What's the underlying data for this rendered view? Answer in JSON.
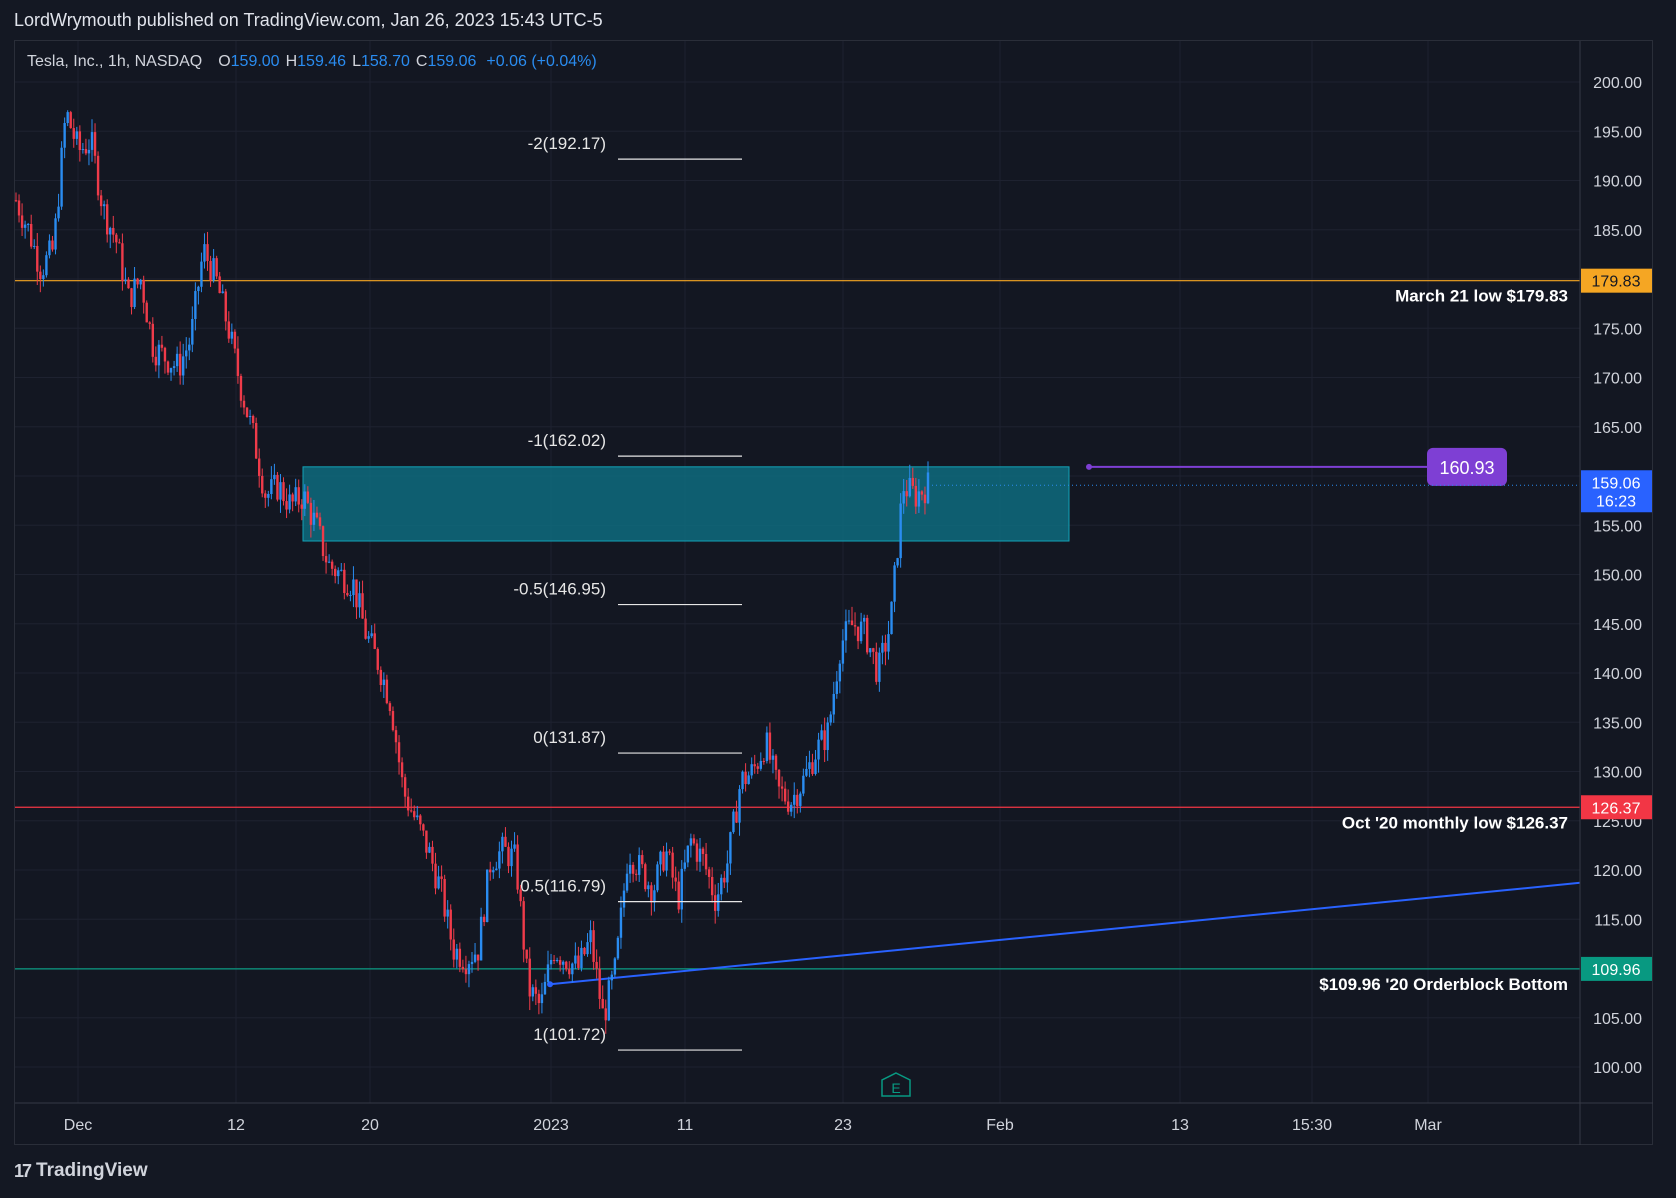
{
  "header": {
    "published": "LordWrymouth published on TradingView.com, Jan 26, 2023 15:43 UTC-5"
  },
  "legend": {
    "symbol": "Tesla, Inc., 1h, NASDAQ",
    "o_label": "O",
    "o_value": "159.00",
    "h_label": "H",
    "h_value": "159.46",
    "l_label": "L",
    "l_value": "158.70",
    "c_label": "C",
    "c_value": "159.06",
    "change": "+0.06 (+0.04%)"
  },
  "footer": {
    "brand": "TradingView",
    "logo_icon": "tradingview-logo-icon"
  },
  "colors": {
    "background": "#131722",
    "grid": "#1e2230",
    "up": "#2a8cf0",
    "down": "#ef3b4a",
    "orange": "#f5a623",
    "red": "#f23645",
    "teal": "#089981",
    "blue_line": "#2962ff",
    "zone": "#0e6b7e",
    "purple": "#7e3fd4"
  },
  "chart_data": {
    "type": "candlestick",
    "symbol": "Tesla, Inc., 1h, NASDAQ",
    "y_axis_ticks": [
      100,
      105,
      110,
      115,
      120,
      125,
      130,
      135,
      140,
      145,
      150,
      155,
      160,
      165,
      170,
      175,
      180,
      185,
      190,
      195,
      200
    ],
    "y_tick_labels": [
      "100.00",
      "105.00",
      "110.00",
      "115.00",
      "120.00",
      "125.00",
      "130.00",
      "135.00",
      "140.00",
      "145.00",
      "150.00",
      "155.00",
      "160.00",
      "165.00",
      "170.00",
      "175.00",
      "180.00",
      "185.00",
      "190.00",
      "195.00",
      "200.00"
    ],
    "ylim": [
      97,
      204
    ],
    "x_tick_labels": [
      "Dec",
      "12",
      "20",
      "2023",
      "11",
      "23",
      "Feb",
      "13",
      "15:30",
      "Mar"
    ],
    "price_path": [
      [
        0,
        188
      ],
      [
        2,
        185
      ],
      [
        4,
        181
      ],
      [
        6,
        183
      ],
      [
        8,
        197
      ],
      [
        10,
        193
      ],
      [
        12,
        194
      ],
      [
        14,
        187
      ],
      [
        16,
        184
      ],
      [
        18,
        178
      ],
      [
        20,
        180
      ],
      [
        22,
        173
      ],
      [
        24,
        172
      ],
      [
        26,
        171
      ],
      [
        28,
        174
      ],
      [
        30,
        183
      ],
      [
        32,
        180
      ],
      [
        34,
        175
      ],
      [
        36,
        169
      ],
      [
        38,
        164
      ],
      [
        40,
        158
      ],
      [
        42,
        159
      ],
      [
        44,
        157
      ],
      [
        46,
        158
      ],
      [
        48,
        155
      ],
      [
        50,
        151
      ],
      [
        52,
        150
      ],
      [
        54,
        149
      ],
      [
        56,
        144
      ],
      [
        58,
        141
      ],
      [
        60,
        137
      ],
      [
        62,
        128
      ],
      [
        64,
        125
      ],
      [
        66,
        122
      ],
      [
        68,
        118
      ],
      [
        70,
        112
      ],
      [
        72,
        111
      ],
      [
        74,
        112
      ],
      [
        76,
        121
      ],
      [
        78,
        122
      ],
      [
        80,
        121
      ],
      [
        82,
        108
      ],
      [
        84,
        106
      ],
      [
        86,
        112
      ],
      [
        88,
        111
      ],
      [
        90,
        110
      ],
      [
        92,
        113
      ],
      [
        94,
        105
      ],
      [
        96,
        110
      ],
      [
        98,
        122
      ],
      [
        100,
        120
      ],
      [
        102,
        118
      ],
      [
        104,
        122
      ],
      [
        106,
        117
      ],
      [
        108,
        123
      ],
      [
        110,
        121
      ],
      [
        112,
        117
      ],
      [
        114,
        121
      ],
      [
        116,
        129
      ],
      [
        118,
        130
      ],
      [
        120,
        133
      ],
      [
        122,
        128
      ],
      [
        124,
        127
      ],
      [
        126,
        129
      ],
      [
        128,
        132
      ],
      [
        130,
        134
      ],
      [
        132,
        143
      ],
      [
        134,
        145
      ],
      [
        136,
        144
      ],
      [
        138,
        140
      ],
      [
        140,
        145
      ],
      [
        142,
        159
      ],
      [
        144,
        158
      ],
      [
        146,
        159.06
      ]
    ],
    "series": [
      {
        "name": "Tesla, Inc., 1h, NASDAQ",
        "last": 159.06
      }
    ],
    "last_price_label": "159.06",
    "countdown_label": "16:23",
    "horizontal_levels": [
      {
        "price": 179.83,
        "label": "179.83",
        "note": "March 21 low $179.83",
        "color": "#f5a623"
      },
      {
        "price": 126.37,
        "label": "126.37",
        "note": "Oct '20 monthly low $126.37",
        "color": "#f23645"
      },
      {
        "price": 109.96,
        "label": "109.96",
        "note": "$109.96 '20 Orderblock Bottom",
        "color": "#089981"
      }
    ],
    "fib_levels": [
      {
        "price": 192.17,
        "label": "-2(192.17)"
      },
      {
        "price": 162.02,
        "label": "-1(162.02)"
      },
      {
        "price": 146.95,
        "label": "-0.5(146.95)"
      },
      {
        "price": 131.87,
        "label": "0(131.87)"
      },
      {
        "price": 116.79,
        "label": "0.5(116.79)"
      },
      {
        "price": 101.72,
        "label": "1(101.72)"
      }
    ],
    "zone": {
      "top": 160.93,
      "bottom": 153.4
    },
    "target": {
      "price": 160.93,
      "label": "160.93"
    },
    "trendline": {
      "from_price": 108.4,
      "to_price": 118.7
    },
    "earnings_marker": "E"
  }
}
